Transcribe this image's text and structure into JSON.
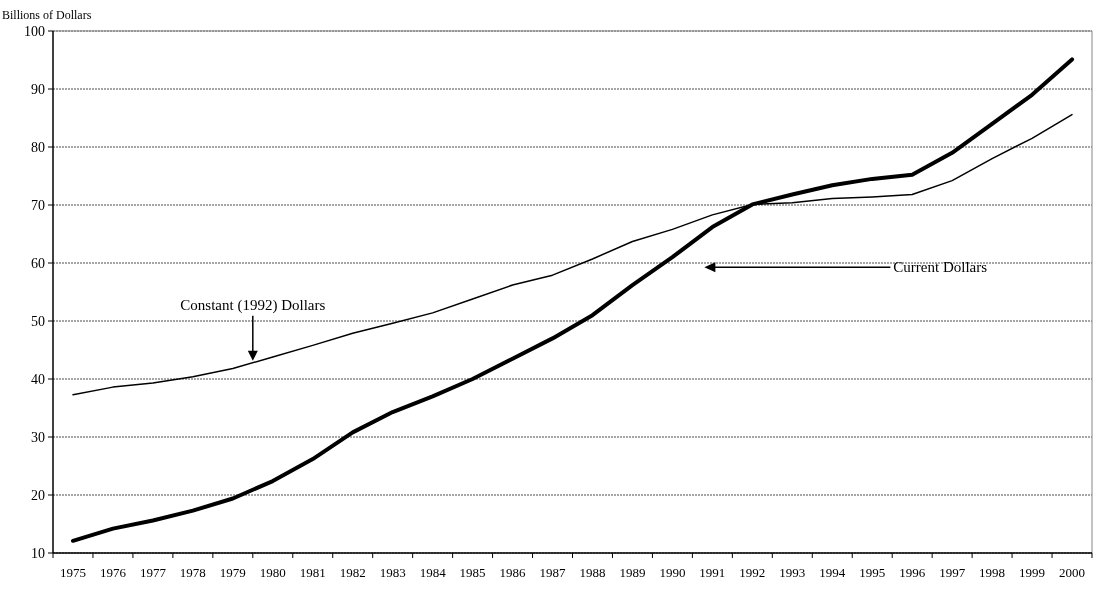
{
  "chart_data": {
    "type": "line",
    "ylabel": "Billions of Dollars",
    "categories": [
      "1975",
      "1976",
      "1977",
      "1978",
      "1979",
      "1980",
      "1981",
      "1982",
      "1983",
      "1984",
      "1985",
      "1986",
      "1987",
      "1988",
      "1989",
      "1990",
      "1991",
      "1992",
      "1993",
      "1994",
      "1995",
      "1996",
      "1997",
      "1998",
      "1999",
      "2000"
    ],
    "series": [
      {
        "color": "#000000",
        "values": [
          37.3,
          38.6,
          39.3,
          40.4,
          41.8,
          43.8,
          45.8,
          47.9,
          49.6,
          51.4,
          53.8,
          56.2,
          57.9,
          60.7,
          63.7,
          65.8,
          68.3,
          70.1,
          70.4,
          71.1,
          71.4,
          71.8,
          74.2,
          78.0,
          81.5,
          85.6
        ]
      },
      {
        "color": "#000000",
        "values": [
          12.1,
          14.2,
          15.6,
          17.3,
          19.4,
          22.4,
          26.2,
          30.8,
          34.3,
          37.0,
          40.0,
          43.5,
          47.0,
          51.0,
          56.2,
          61.0,
          66.2,
          70.1,
          71.8,
          73.4,
          74.5,
          75.2,
          79.0,
          84.0,
          89.0,
          95.1
        ]
      }
    ],
    "annotations": [
      "Constant (1992) Dollars",
      "Current Dollars"
    ],
    "ylim": [
      10,
      100
    ],
    "yticks": [
      10,
      20,
      30,
      40,
      50,
      60,
      70,
      80,
      90,
      100
    ],
    "grid": "y",
    "marker": "none",
    "line_style": "solid"
  }
}
